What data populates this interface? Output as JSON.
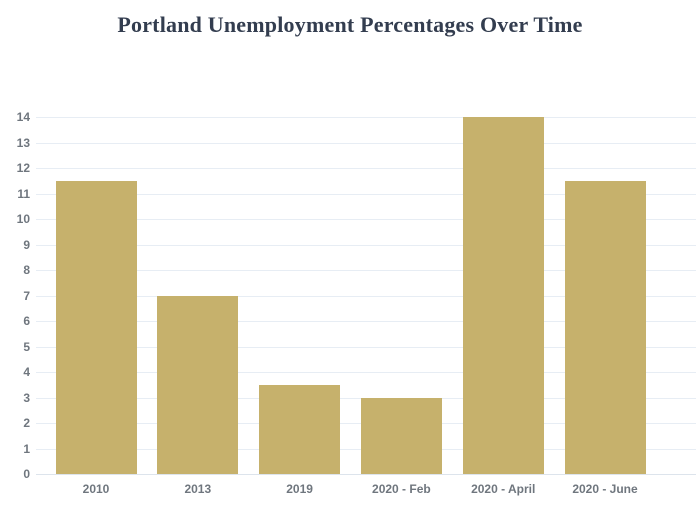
{
  "title": {
    "text": "Portland Unemployment Percentages Over Time",
    "color": "#333D4F"
  },
  "chart_data": {
    "type": "bar",
    "title": "Portland Unemployment Percentages Over Time",
    "categories": [
      "2010",
      "2013",
      "2019",
      "2020 - Feb",
      "2020 - April",
      "2020 - June"
    ],
    "values": [
      11.5,
      7,
      3.5,
      3,
      14,
      11.5
    ],
    "xlabel": "",
    "ylabel": "",
    "ylim": [
      0,
      14
    ],
    "ytick_step": 1,
    "ytick_labels": [
      "0",
      "1",
      "2",
      "3",
      "4",
      "5",
      "6",
      "7",
      "8",
      "9",
      "10",
      "11",
      "12",
      "13",
      "14"
    ],
    "grid": true,
    "legend": "none",
    "bar_color": "#C6B16C",
    "grid_color": "#E7EDF4",
    "baseline_color": "#DDE4EC",
    "tick_label_color": "#6F767E"
  }
}
